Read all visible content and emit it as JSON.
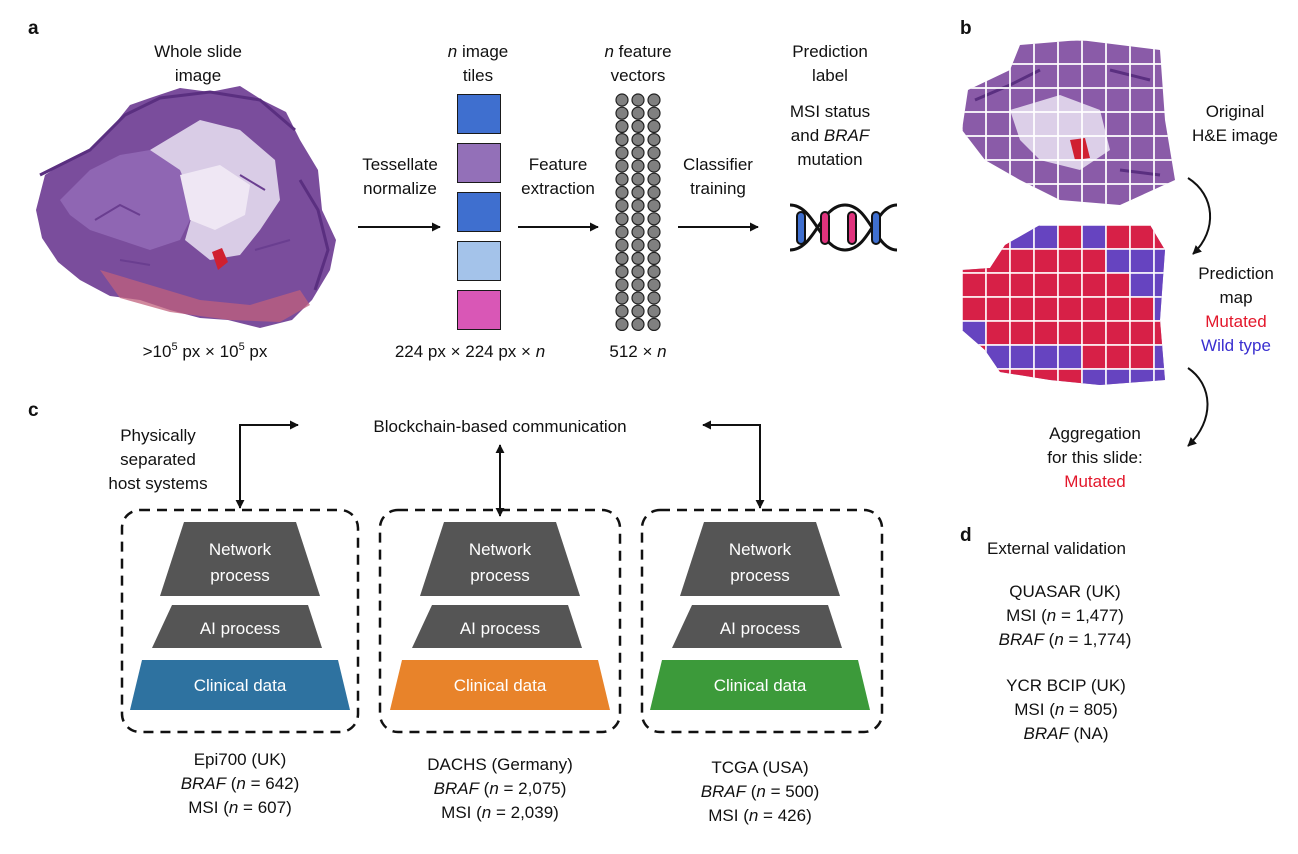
{
  "panel_labels": {
    "a": "a",
    "b": "b",
    "c": "c",
    "d": "d"
  },
  "panel_a": {
    "wsi_title_1": "Whole slide",
    "wsi_title_2": "image",
    "wsi_size_pre": ">10",
    "wsi_size_exp1": "5",
    "wsi_size_mid": " px × 10",
    "wsi_size_exp2": "5",
    "wsi_size_post": " px",
    "step1_line1": "Tessellate",
    "step1_line2": "normalize",
    "tiles_n": "n",
    "tiles_line1_rest": " image",
    "tiles_line2": "tiles",
    "tiles_size": "224 px × 224 px × ",
    "tiles_size_n": "n",
    "step2_line1": "Feature",
    "step2_line2": "extraction",
    "vectors_n": "n",
    "vectors_line1_rest": " feature",
    "vectors_line2": "vectors",
    "vectors_size": "512 × ",
    "vectors_size_n": "n",
    "step3_line1": "Classifier",
    "step3_line2": "training",
    "pred_line1": "Prediction",
    "pred_line2": "label",
    "pred_line3": "MSI status",
    "pred_line4_pre": "and ",
    "pred_line4_em": "BRAF",
    "pred_line5": "mutation",
    "tile_colors": [
      "#3f6fcf",
      "#9370b8",
      "#3f6fcf",
      "#a4c3ea",
      "#d957b6"
    ]
  },
  "panel_b": {
    "orig_line1": "Original",
    "orig_line2": "H&E image",
    "pm_line1": "Prediction",
    "pm_line2": "map",
    "pm_mutated": "Mutated",
    "pm_wild": "Wild type",
    "agg_line1": "Aggregation",
    "agg_line2": "for this slide:",
    "agg_result": "Mutated"
  },
  "panel_c": {
    "host_line1": "Physically",
    "host_line2": "separated",
    "host_line3": "host systems",
    "blockchain": "Blockchain-based communication",
    "tier_network_1": "Network",
    "tier_network_2": "process",
    "tier_ai": "AI process",
    "tier_clinical": "Clinical data",
    "sites": [
      {
        "name": "Epi700 (UK)",
        "line2_em": "BRAF",
        "line2_rest": " (",
        "line2_n": "n",
        "line2_val": " = 642)",
        "line3_pre": "MSI (",
        "line3_n": "n",
        "line3_val": " = 607)",
        "color": "#2e72a0"
      },
      {
        "name": "DACHS (Germany)",
        "line2_em": "BRAF",
        "line2_rest": " (",
        "line2_n": "n",
        "line2_val": " = 2,075)",
        "line3_pre": "MSI (",
        "line3_n": "n",
        "line3_val": " = 2,039)",
        "color": "#e8832a"
      },
      {
        "name": "TCGA (USA)",
        "line2_em": "BRAF",
        "line2_rest": " (",
        "line2_n": "n",
        "line2_val": " = 500)",
        "line3_pre": "MSI (",
        "line3_n": "n",
        "line3_val": " = 426)",
        "color": "#3c9a3a"
      }
    ]
  },
  "panel_d": {
    "title": "External validation",
    "c1_name": "QUASAR (UK)",
    "c1_l2_pre": "MSI (",
    "c1_l2_n": "n",
    "c1_l2_val": " = 1,477)",
    "c1_l3_em": "BRAF",
    "c1_l3_pre": " (",
    "c1_l3_n": "n",
    "c1_l3_val": " = 1,774)",
    "c2_name": "YCR BCIP (UK)",
    "c2_l2_pre": "MSI (",
    "c2_l2_n": "n",
    "c2_l2_val": " = 805)",
    "c2_l3_em": "BRAF",
    "c2_l3_val": " (NA)"
  }
}
